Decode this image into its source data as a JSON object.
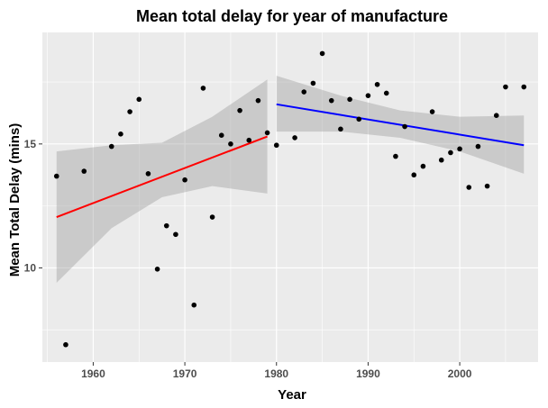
{
  "chart_data": {
    "type": "scatter",
    "title": "Mean total delay for year of manufacture",
    "xlabel": "Year",
    "ylabel": "Mean Total Delay (mins)",
    "xlim": [
      1954.45,
      2008.55
    ],
    "ylim": [
      6.2,
      19.5
    ],
    "x_ticks": [
      1960,
      1970,
      1980,
      1990,
      2000
    ],
    "x_tick_labels": [
      "1960",
      "1970",
      "1980",
      "1990",
      "2000"
    ],
    "y_ticks": [
      10,
      15
    ],
    "y_tick_labels": [
      "10",
      "15"
    ],
    "grid": true,
    "legend": "none",
    "points": [
      {
        "x": 1956,
        "y": 13.7
      },
      {
        "x": 1957,
        "y": 6.9
      },
      {
        "x": 1959,
        "y": 13.9
      },
      {
        "x": 1962,
        "y": 14.9
      },
      {
        "x": 1963,
        "y": 15.4
      },
      {
        "x": 1964,
        "y": 16.3
      },
      {
        "x": 1965,
        "y": 16.8
      },
      {
        "x": 1966,
        "y": 13.8
      },
      {
        "x": 1967,
        "y": 9.95
      },
      {
        "x": 1968,
        "y": 11.7
      },
      {
        "x": 1969,
        "y": 11.35
      },
      {
        "x": 1970,
        "y": 13.55
      },
      {
        "x": 1971,
        "y": 8.5
      },
      {
        "x": 1972,
        "y": 17.25
      },
      {
        "x": 1973,
        "y": 12.05
      },
      {
        "x": 1974,
        "y": 15.35
      },
      {
        "x": 1975,
        "y": 15.0
      },
      {
        "x": 1976,
        "y": 16.35
      },
      {
        "x": 1977,
        "y": 15.15
      },
      {
        "x": 1978,
        "y": 16.75
      },
      {
        "x": 1979,
        "y": 15.45
      },
      {
        "x": 1980,
        "y": 14.95
      },
      {
        "x": 1982,
        "y": 15.25
      },
      {
        "x": 1983,
        "y": 17.1
      },
      {
        "x": 1984,
        "y": 17.45
      },
      {
        "x": 1985,
        "y": 18.65
      },
      {
        "x": 1986,
        "y": 16.75
      },
      {
        "x": 1987,
        "y": 15.6
      },
      {
        "x": 1988,
        "y": 16.8
      },
      {
        "x": 1989,
        "y": 16.0
      },
      {
        "x": 1990,
        "y": 16.95
      },
      {
        "x": 1991,
        "y": 17.4
      },
      {
        "x": 1992,
        "y": 17.05
      },
      {
        "x": 1993,
        "y": 14.5
      },
      {
        "x": 1994,
        "y": 15.7
      },
      {
        "x": 1995,
        "y": 13.75
      },
      {
        "x": 1996,
        "y": 14.1
      },
      {
        "x": 1997,
        "y": 16.3
      },
      {
        "x": 1998,
        "y": 14.35
      },
      {
        "x": 1999,
        "y": 14.65
      },
      {
        "x": 2000,
        "y": 14.8
      },
      {
        "x": 2001,
        "y": 13.25
      },
      {
        "x": 2002,
        "y": 14.9
      },
      {
        "x": 2003,
        "y": 13.3
      },
      {
        "x": 2004,
        "y": 16.15
      },
      {
        "x": 2005,
        "y": 17.3
      },
      {
        "x": 2007,
        "y": 17.3
      }
    ],
    "fits": [
      {
        "color": "#ff0000",
        "x_range": [
          1956,
          1979
        ],
        "line": [
          [
            1956,
            12.05
          ],
          [
            1979,
            15.3
          ]
        ],
        "band": [
          [
            1956,
            9.4,
            14.7
          ],
          [
            1962,
            11.6,
            14.95
          ],
          [
            1967.5,
            12.85,
            15.05
          ],
          [
            1973,
            13.3,
            16.1
          ],
          [
            1979,
            13.0,
            17.6
          ]
        ]
      },
      {
        "color": "#0000ff",
        "x_range": [
          1980,
          2007
        ],
        "line": [
          [
            1980,
            16.6
          ],
          [
            2007,
            14.95
          ]
        ],
        "band": [
          [
            1980,
            15.5,
            17.75
          ],
          [
            1987,
            15.5,
            16.95
          ],
          [
            1993.5,
            15.25,
            16.35
          ],
          [
            2000,
            14.7,
            16.1
          ],
          [
            2007,
            13.8,
            16.15
          ]
        ]
      }
    ],
    "colors": {
      "panel": "#ebebeb",
      "grid": "#ffffff",
      "point": "#000000",
      "band": "#999999"
    }
  }
}
